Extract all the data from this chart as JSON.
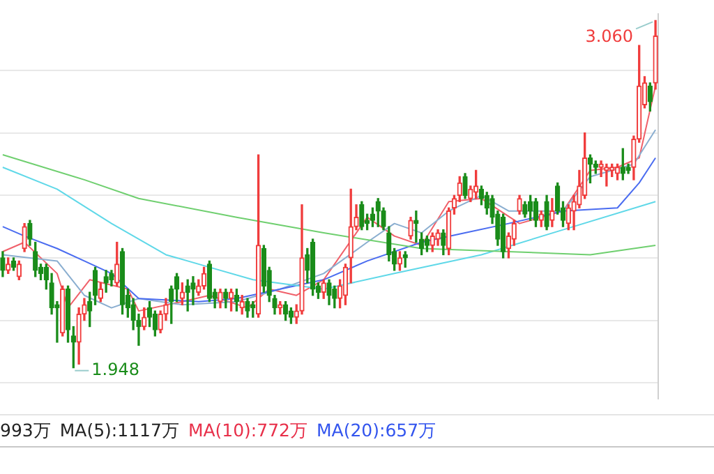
{
  "chart_data": {
    "type": "candlestick",
    "categories": [
      null,
      null,
      null,
      null,
      null,
      null,
      null,
      null,
      null,
      null,
      null,
      null,
      null,
      null,
      null,
      null,
      null,
      null,
      null,
      null,
      null,
      null,
      null,
      null,
      null,
      null,
      null,
      null,
      null,
      null,
      null,
      null,
      null,
      null,
      null,
      null,
      null,
      null,
      null,
      null,
      null,
      null,
      null,
      null,
      null,
      null,
      null,
      null,
      null,
      null,
      null,
      null,
      null,
      null,
      null,
      null,
      null,
      null,
      null,
      null,
      null,
      null,
      null,
      null,
      null,
      null,
      null,
      null,
      null,
      null,
      null,
      null,
      null,
      null,
      null,
      null,
      null,
      null,
      null,
      null,
      null,
      null,
      null,
      null,
      null,
      null,
      null,
      null,
      null,
      null,
      null,
      null,
      null,
      null,
      null,
      null,
      null,
      null,
      null,
      null,
      null,
      null,
      null,
      null,
      null,
      null,
      null,
      null,
      null,
      null,
      null,
      null,
      null,
      null,
      null,
      null,
      null,
      null,
      null,
      null,
      null
    ],
    "ohlc": [
      [
        2.3,
        2.32,
        2.24,
        2.26
      ],
      [
        2.26,
        2.3,
        2.25,
        2.28
      ],
      [
        2.29,
        2.3,
        2.26,
        2.27
      ],
      [
        2.24,
        2.29,
        2.23,
        2.28
      ],
      [
        2.33,
        2.41,
        2.32,
        2.4
      ],
      [
        2.41,
        2.42,
        2.34,
        2.36
      ],
      [
        2.32,
        2.35,
        2.24,
        2.26
      ],
      [
        2.27,
        2.28,
        2.23,
        2.25
      ],
      [
        2.27,
        2.28,
        2.2,
        2.23
      ],
      [
        2.22,
        2.25,
        2.12,
        2.14
      ],
      [
        2.15,
        2.16,
        2.03,
        2.14
      ],
      [
        2.06,
        2.21,
        2.05,
        2.2
      ],
      [
        2.2,
        2.21,
        2.03,
        2.07
      ],
      [
        2.05,
        2.08,
        1.948,
        2.03
      ],
      [
        2.03,
        2.14,
        1.96,
        2.12
      ],
      [
        2.12,
        2.17,
        2.1,
        2.15
      ],
      [
        2.16,
        2.19,
        2.08,
        2.13
      ],
      [
        2.26,
        2.27,
        2.15,
        2.18
      ],
      [
        2.17,
        2.22,
        2.16,
        2.2
      ],
      [
        2.24,
        2.26,
        2.19,
        2.22
      ],
      [
        2.25,
        2.26,
        2.21,
        2.23
      ],
      [
        2.22,
        2.35,
        2.21,
        2.28
      ],
      [
        2.32,
        2.33,
        2.12,
        2.15
      ],
      [
        2.18,
        2.2,
        2.11,
        2.14
      ],
      [
        2.15,
        2.17,
        2.07,
        2.1
      ],
      [
        2.1,
        2.12,
        2.02,
        2.08
      ],
      [
        2.08,
        2.14,
        2.07,
        2.11
      ],
      [
        2.14,
        2.16,
        2.08,
        2.11
      ],
      [
        2.12,
        2.13,
        2.05,
        2.07
      ],
      [
        2.07,
        2.13,
        2.06,
        2.12
      ],
      [
        2.12,
        2.17,
        2.1,
        2.15
      ],
      [
        2.2,
        2.21,
        2.09,
        2.16
      ],
      [
        2.24,
        2.25,
        2.16,
        2.2
      ],
      [
        2.17,
        2.22,
        2.15,
        2.19
      ],
      [
        2.21,
        2.23,
        2.13,
        2.19
      ],
      [
        2.22,
        2.24,
        2.15,
        2.2
      ],
      [
        2.19,
        2.23,
        2.18,
        2.21
      ],
      [
        2.21,
        2.27,
        2.2,
        2.25
      ],
      [
        2.28,
        2.29,
        2.16,
        2.17
      ],
      [
        2.19,
        2.2,
        2.14,
        2.17
      ],
      [
        2.16,
        2.2,
        2.14,
        2.19
      ],
      [
        2.19,
        2.2,
        2.14,
        2.17
      ],
      [
        2.17,
        2.2,
        2.13,
        2.19
      ],
      [
        2.18,
        2.2,
        2.13,
        2.16
      ],
      [
        2.14,
        2.18,
        2.12,
        2.16
      ],
      [
        2.16,
        2.17,
        2.11,
        2.13
      ],
      [
        2.15,
        2.16,
        2.11,
        2.14
      ],
      [
        2.12,
        2.63,
        2.11,
        2.34
      ],
      [
        2.33,
        2.34,
        2.19,
        2.21
      ],
      [
        2.26,
        2.27,
        2.16,
        2.18
      ],
      [
        2.17,
        2.18,
        2.12,
        2.14
      ],
      [
        2.14,
        2.16,
        2.12,
        2.15
      ],
      [
        2.15,
        2.16,
        2.1,
        2.12
      ],
      [
        2.13,
        2.14,
        2.09,
        2.11
      ],
      [
        2.11,
        2.15,
        2.09,
        2.13
      ],
      [
        2.13,
        2.47,
        2.12,
        2.3
      ],
      [
        2.31,
        2.33,
        2.22,
        2.26
      ],
      [
        2.35,
        2.36,
        2.18,
        2.2
      ],
      [
        2.21,
        2.22,
        2.17,
        2.19
      ],
      [
        2.19,
        2.23,
        2.17,
        2.22
      ],
      [
        2.22,
        2.23,
        2.15,
        2.18
      ],
      [
        2.2,
        2.21,
        2.14,
        2.17
      ],
      [
        2.17,
        2.23,
        2.14,
        2.21
      ],
      [
        2.18,
        2.28,
        2.15,
        2.27
      ],
      [
        2.3,
        2.52,
        2.22,
        2.4
      ],
      [
        2.4,
        2.47,
        2.39,
        2.43
      ],
      [
        2.47,
        2.48,
        2.39,
        2.4
      ],
      [
        2.42,
        2.44,
        2.39,
        2.41
      ],
      [
        2.44,
        2.46,
        2.4,
        2.42
      ],
      [
        2.48,
        2.49,
        2.4,
        2.45
      ],
      [
        2.45,
        2.46,
        2.39,
        2.4
      ],
      [
        2.38,
        2.4,
        2.29,
        2.31
      ],
      [
        2.32,
        2.33,
        2.26,
        2.28
      ],
      [
        2.28,
        2.32,
        2.26,
        2.3
      ],
      [
        2.31,
        2.32,
        2.27,
        2.3
      ],
      [
        2.37,
        2.43,
        2.36,
        2.42
      ],
      [
        2.42,
        2.45,
        2.35,
        2.41
      ],
      [
        2.36,
        2.38,
        2.31,
        2.33
      ],
      [
        2.36,
        2.37,
        2.32,
        2.34
      ],
      [
        2.34,
        2.38,
        2.32,
        2.37
      ],
      [
        2.36,
        2.39,
        2.34,
        2.38
      ],
      [
        2.38,
        2.39,
        2.31,
        2.34
      ],
      [
        2.33,
        2.46,
        2.31,
        2.45
      ],
      [
        2.46,
        2.5,
        2.44,
        2.49
      ],
      [
        2.5,
        2.56,
        2.48,
        2.54
      ],
      [
        2.56,
        2.57,
        2.49,
        2.5
      ],
      [
        2.49,
        2.53,
        2.48,
        2.52
      ],
      [
        2.51,
        2.58,
        2.49,
        2.53
      ],
      [
        2.52,
        2.53,
        2.47,
        2.49
      ],
      [
        2.5,
        2.51,
        2.44,
        2.46
      ],
      [
        2.49,
        2.5,
        2.41,
        2.43
      ],
      [
        2.44,
        2.45,
        2.34,
        2.36
      ],
      [
        2.43,
        2.44,
        2.3,
        2.32
      ],
      [
        2.33,
        2.38,
        2.3,
        2.37
      ],
      [
        2.36,
        2.42,
        2.34,
        2.41
      ],
      [
        2.45,
        2.5,
        2.44,
        2.49
      ],
      [
        2.47,
        2.48,
        2.43,
        2.44
      ],
      [
        2.48,
        2.5,
        2.42,
        2.45
      ],
      [
        2.48,
        2.49,
        2.4,
        2.42
      ],
      [
        2.42,
        2.45,
        2.4,
        2.44
      ],
      [
        2.48,
        2.5,
        2.39,
        2.4
      ],
      [
        2.42,
        2.49,
        2.4,
        2.45
      ],
      [
        2.53,
        2.54,
        2.44,
        2.45
      ],
      [
        2.46,
        2.48,
        2.4,
        2.42
      ],
      [
        2.41,
        2.47,
        2.39,
        2.46
      ],
      [
        2.45,
        2.5,
        2.39,
        2.48
      ],
      [
        2.47,
        2.58,
        2.46,
        2.53
      ],
      [
        2.5,
        2.7,
        2.49,
        2.62
      ],
      [
        2.62,
        2.63,
        2.54,
        2.6
      ],
      [
        2.6,
        2.61,
        2.57,
        2.59
      ],
      [
        2.59,
        2.61,
        2.56,
        2.6
      ],
      [
        2.58,
        2.6,
        2.53,
        2.59
      ],
      [
        2.58,
        2.6,
        2.56,
        2.59
      ],
      [
        2.57,
        2.6,
        2.55,
        2.59
      ],
      [
        2.59,
        2.65,
        2.55,
        2.57
      ],
      [
        2.59,
        2.6,
        2.57,
        2.58
      ],
      [
        2.59,
        2.69,
        2.55,
        2.68
      ],
      [
        2.68,
        2.98,
        2.67,
        2.85
      ],
      [
        2.79,
        2.88,
        2.78,
        2.86
      ],
      [
        2.85,
        2.86,
        2.77,
        2.8
      ],
      [
        2.86,
        3.06,
        2.84,
        3.01
      ]
    ],
    "series": [
      {
        "type": "line",
        "color": "#6fcf6f",
        "values": [
          2.63,
          null,
          null,
          null,
          null,
          null,
          null,
          null,
          null,
          null,
          null,
          null,
          null,
          null,
          null,
          2.55,
          null,
          null,
          null,
          null,
          null,
          null,
          null,
          null,
          null,
          2.49,
          null,
          null,
          null,
          null,
          null,
          null,
          null,
          null,
          null,
          null,
          null,
          null,
          null,
          null,
          null,
          null,
          null,
          2.43,
          null,
          null,
          null,
          null,
          null,
          null,
          null,
          null,
          null,
          null,
          null,
          null,
          null,
          null,
          null,
          2.38,
          null,
          null,
          null,
          null,
          null,
          null,
          null,
          null,
          null,
          null,
          null,
          null,
          null,
          null,
          null,
          null,
          null,
          2.33,
          null,
          null,
          null,
          null,
          null,
          null,
          null,
          null,
          null,
          null,
          null,
          null,
          null,
          null,
          null,
          2.32,
          null,
          null,
          null,
          null,
          null,
          null,
          null,
          null,
          null,
          null,
          null,
          null,
          null,
          null,
          2.31,
          null,
          null,
          null,
          null,
          null,
          null,
          null,
          null,
          null,
          null,
          null,
          2.34
        ]
      },
      {
        "type": "line",
        "color": "#5fd8e8",
        "values": [
          2.59,
          null,
          null,
          null,
          null,
          null,
          null,
          null,
          null,
          null,
          2.52,
          null,
          null,
          null,
          null,
          null,
          null,
          null,
          null,
          null,
          2.41,
          null,
          null,
          null,
          null,
          null,
          null,
          null,
          null,
          null,
          2.31,
          null,
          null,
          null,
          null,
          null,
          null,
          null,
          2.27,
          null,
          null,
          null,
          null,
          null,
          null,
          null,
          2.23,
          null,
          null,
          null,
          null,
          null,
          null,
          null,
          null,
          null,
          null,
          null,
          null,
          2.2,
          null,
          null,
          null,
          null,
          null,
          null,
          null,
          null,
          null,
          null,
          null,
          null,
          2.25,
          null,
          null,
          null,
          null,
          null,
          null,
          null,
          null,
          null,
          null,
          null,
          null,
          null,
          null,
          null,
          2.31,
          null,
          null,
          null,
          null,
          null,
          null,
          null,
          null,
          null,
          null,
          null,
          null,
          null,
          null,
          2.39,
          null,
          null,
          null,
          null,
          null,
          null,
          null,
          null,
          null,
          null,
          null,
          null,
          null,
          null,
          null,
          null,
          2.48
        ]
      },
      {
        "type": "line",
        "color": "#4a6cf0",
        "values": [
          2.4,
          null,
          null,
          null,
          2.37,
          null,
          null,
          null,
          null,
          null,
          2.33,
          null,
          null,
          null,
          null,
          2.29,
          null,
          null,
          null,
          null,
          2.25,
          null,
          null,
          null,
          null,
          2.17,
          null,
          null,
          null,
          null,
          null,
          null,
          null,
          null,
          null,
          null,
          2.16,
          null,
          null,
          null,
          null,
          null,
          null,
          2.17,
          null,
          null,
          null,
          null,
          null,
          null,
          null,
          2.2,
          null,
          null,
          null,
          null,
          null,
          null,
          null,
          2.23,
          null,
          null,
          null,
          null,
          null,
          null,
          null,
          2.29,
          null,
          null,
          null,
          null,
          null,
          null,
          null,
          null,
          null,
          2.35,
          null,
          null,
          null,
          null,
          null,
          null,
          null,
          2.38,
          null,
          null,
          null,
          null,
          null,
          null,
          null,
          2.41,
          null,
          null,
          null,
          null,
          null,
          null,
          null,
          null,
          null,
          2.45,
          null,
          null,
          null,
          null,
          null,
          null,
          null,
          null,
          null,
          2.46,
          null,
          null,
          null,
          2.54,
          null,
          null,
          2.62
        ]
      },
      {
        "type": "line",
        "color": "#8aaed0",
        "values": [
          2.31,
          null,
          null,
          null,
          null,
          null,
          null,
          null,
          null,
          null,
          2.29,
          null,
          null,
          null,
          null,
          2.18,
          null,
          null,
          null,
          null,
          2.14,
          null,
          null,
          null,
          null,
          2.17,
          null,
          null,
          null,
          null,
          null,
          null,
          null,
          2.15,
          null,
          null,
          null,
          null,
          null,
          null,
          null,
          null,
          null,
          2.16,
          null,
          null,
          null,
          null,
          null,
          null,
          null,
          2.2,
          null,
          null,
          null,
          null,
          null,
          null,
          null,
          2.25,
          null,
          null,
          null,
          null,
          null,
          null,
          null,
          2.35,
          null,
          null,
          null,
          null,
          2.41,
          null,
          null,
          null,
          null,
          2.38,
          null,
          null,
          null,
          null,
          2.45,
          null,
          null,
          null,
          null,
          null,
          2.5,
          null,
          null,
          null,
          null,
          2.45,
          null,
          null,
          null,
          null,
          null,
          null,
          null,
          null,
          null,
          2.45,
          null,
          null,
          null,
          null,
          2.56,
          null,
          null,
          null,
          null,
          null,
          null,
          null,
          2.6,
          null,
          null,
          null,
          2.71
        ]
      },
      {
        "type": "line",
        "color": "#f0606a",
        "values": [
          2.32,
          null,
          null,
          null,
          2.35,
          null,
          null,
          null,
          null,
          null,
          2.25,
          null,
          2.14,
          null,
          null,
          null,
          2.23,
          null,
          null,
          null,
          null,
          null,
          null,
          2.2,
          null,
          2.13,
          null,
          null,
          null,
          null,
          null,
          null,
          null,
          2.16,
          null,
          null,
          null,
          null,
          2.18,
          null,
          null,
          null,
          null,
          null,
          null,
          2.14,
          null,
          null,
          null,
          2.2,
          null,
          null,
          null,
          null,
          2.18,
          null,
          null,
          null,
          null,
          2.23,
          null,
          null,
          null,
          null,
          null,
          null,
          null,
          2.43,
          null,
          null,
          null,
          null,
          2.37,
          null,
          null,
          null,
          null,
          2.34,
          null,
          null,
          null,
          null,
          2.48,
          null,
          null,
          null,
          null,
          null,
          2.49,
          null,
          null,
          null,
          null,
          null,
          null,
          2.41,
          null,
          null,
          null,
          null,
          null,
          null,
          null,
          2.45,
          null,
          null,
          null,
          null,
          2.58,
          null,
          null,
          null,
          null,
          2.59,
          null,
          null,
          null,
          2.62,
          null,
          null,
          2.85
        ]
      }
    ],
    "ylim": [
      1.85,
      3.08
    ],
    "yticks": [
      {
        "value": 1.9,
        "label": null
      },
      {
        "value": 2.1,
        "label": null
      },
      {
        "value": 2.3,
        "label": null
      },
      {
        "value": 2.5,
        "label": null
      },
      {
        "value": 2.7,
        "label": null
      },
      {
        "value": 2.9,
        "label": null
      }
    ],
    "grid": "y",
    "legend": false,
    "marker": "none",
    "annotations": [
      "3.060",
      "1.948",
      "993万",
      "MA(5):1117万",
      "MA(10):772万",
      "MA(20):657万"
    ]
  }
}
